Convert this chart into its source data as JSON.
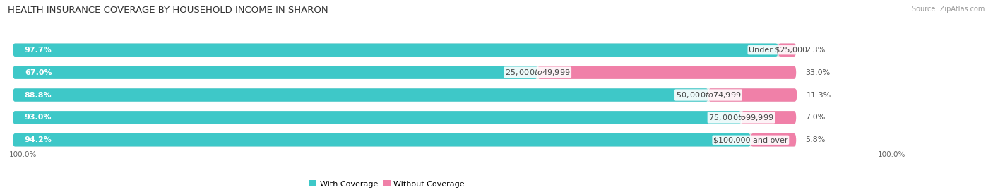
{
  "title": "HEALTH INSURANCE COVERAGE BY HOUSEHOLD INCOME IN SHARON",
  "source": "Source: ZipAtlas.com",
  "categories": [
    "Under $25,000",
    "$25,000 to $49,999",
    "$50,000 to $74,999",
    "$75,000 to $99,999",
    "$100,000 and over"
  ],
  "with_coverage": [
    97.7,
    67.0,
    88.8,
    93.0,
    94.2
  ],
  "without_coverage": [
    2.3,
    33.0,
    11.3,
    7.0,
    5.8
  ],
  "color_with": "#3ec8c8",
  "color_without": "#f080a8",
  "bar_bg": "#e6e6e6",
  "title_fontsize": 9.5,
  "label_fontsize": 8.0,
  "tick_fontsize": 7.5,
  "bar_height": 0.58,
  "bar_gap": 0.42,
  "fig_width": 14.06,
  "fig_height": 2.69,
  "total_scale": 100.0,
  "max_pct": 100.0
}
